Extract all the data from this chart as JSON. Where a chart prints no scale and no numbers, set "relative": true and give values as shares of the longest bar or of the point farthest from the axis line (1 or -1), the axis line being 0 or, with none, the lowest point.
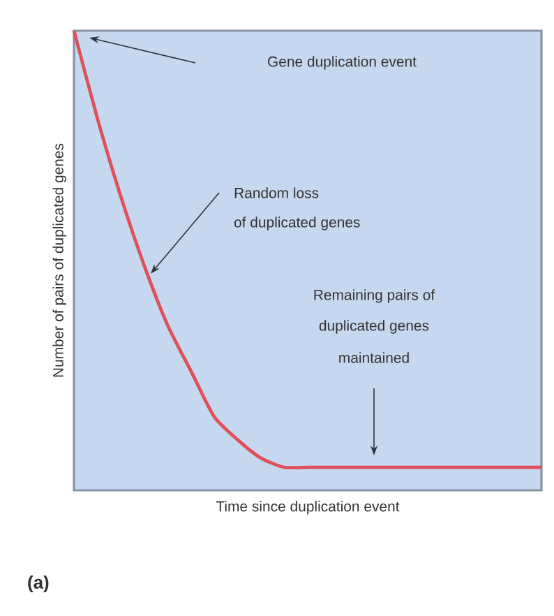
{
  "chart_data": {
    "type": "line",
    "relative": true,
    "xlabel": "Time since duplication event",
    "ylabel": "Number of pairs of duplicated genes",
    "categories": [
      null,
      null,
      null,
      null,
      null,
      null,
      null,
      null,
      null,
      null,
      null,
      null,
      null,
      null,
      null,
      null,
      null,
      null,
      null,
      null,
      null
    ],
    "values": [
      1.0,
      0.81,
      0.64,
      0.49,
      0.36,
      0.26,
      0.16,
      0.11,
      0.07,
      0.05,
      0.05,
      0.05,
      0.05,
      0.05,
      0.05,
      0.05,
      0.05,
      0.05,
      0.05,
      0.05,
      0.05
    ],
    "color": "#e0505a",
    "annotations": [
      "Gene duplication event",
      "Random loss",
      "of duplicated genes",
      "Remaining pairs of",
      "duplicated genes",
      "maintained",
      "(a)"
    ]
  }
}
